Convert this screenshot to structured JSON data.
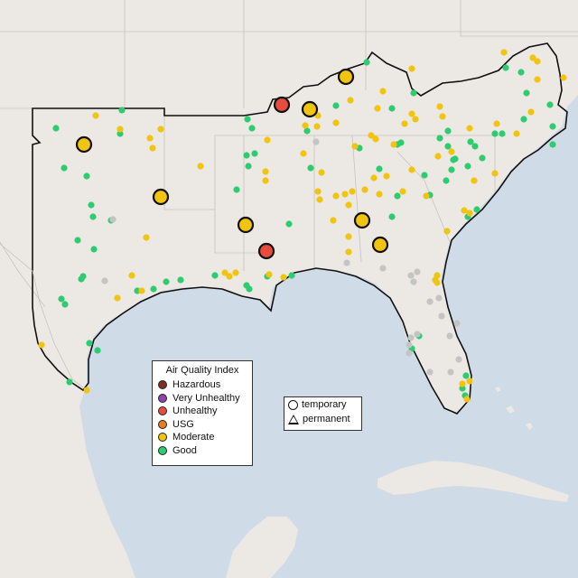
{
  "map": {
    "title": "",
    "colors": {
      "water": "#cfdbe6",
      "land": "#ece8e3",
      "land_far": "#e6e2dc",
      "border": "#c7c3bd",
      "region_outline": "#111111"
    }
  },
  "legend": {
    "title": "Air Quality Index",
    "items": [
      {
        "label": "Hazardous",
        "color": "#7e2e24"
      },
      {
        "label": "Very Unhealthy",
        "color": "#8e44ad"
      },
      {
        "label": "Unhealthy",
        "color": "#e74c3c"
      },
      {
        "label": "USG",
        "color": "#e67e22"
      },
      {
        "label": "Moderate",
        "color": "#f1c40f"
      },
      {
        "label": "Good",
        "color": "#2ecc71"
      }
    ],
    "shapes": [
      {
        "label": "temporary",
        "shape": "circle"
      },
      {
        "label": "permanent",
        "shape": "triangle"
      }
    ]
  },
  "monitors_large": [
    {
      "category": "Moderate"
    },
    {
      "category": "Moderate"
    },
    {
      "category": "Moderate"
    },
    {
      "category": "Moderate"
    },
    {
      "category": "Moderate"
    },
    {
      "category": "Moderate"
    },
    {
      "category": "Moderate"
    },
    {
      "category": "Unhealthy"
    },
    {
      "category": "Unhealthy"
    }
  ]
}
